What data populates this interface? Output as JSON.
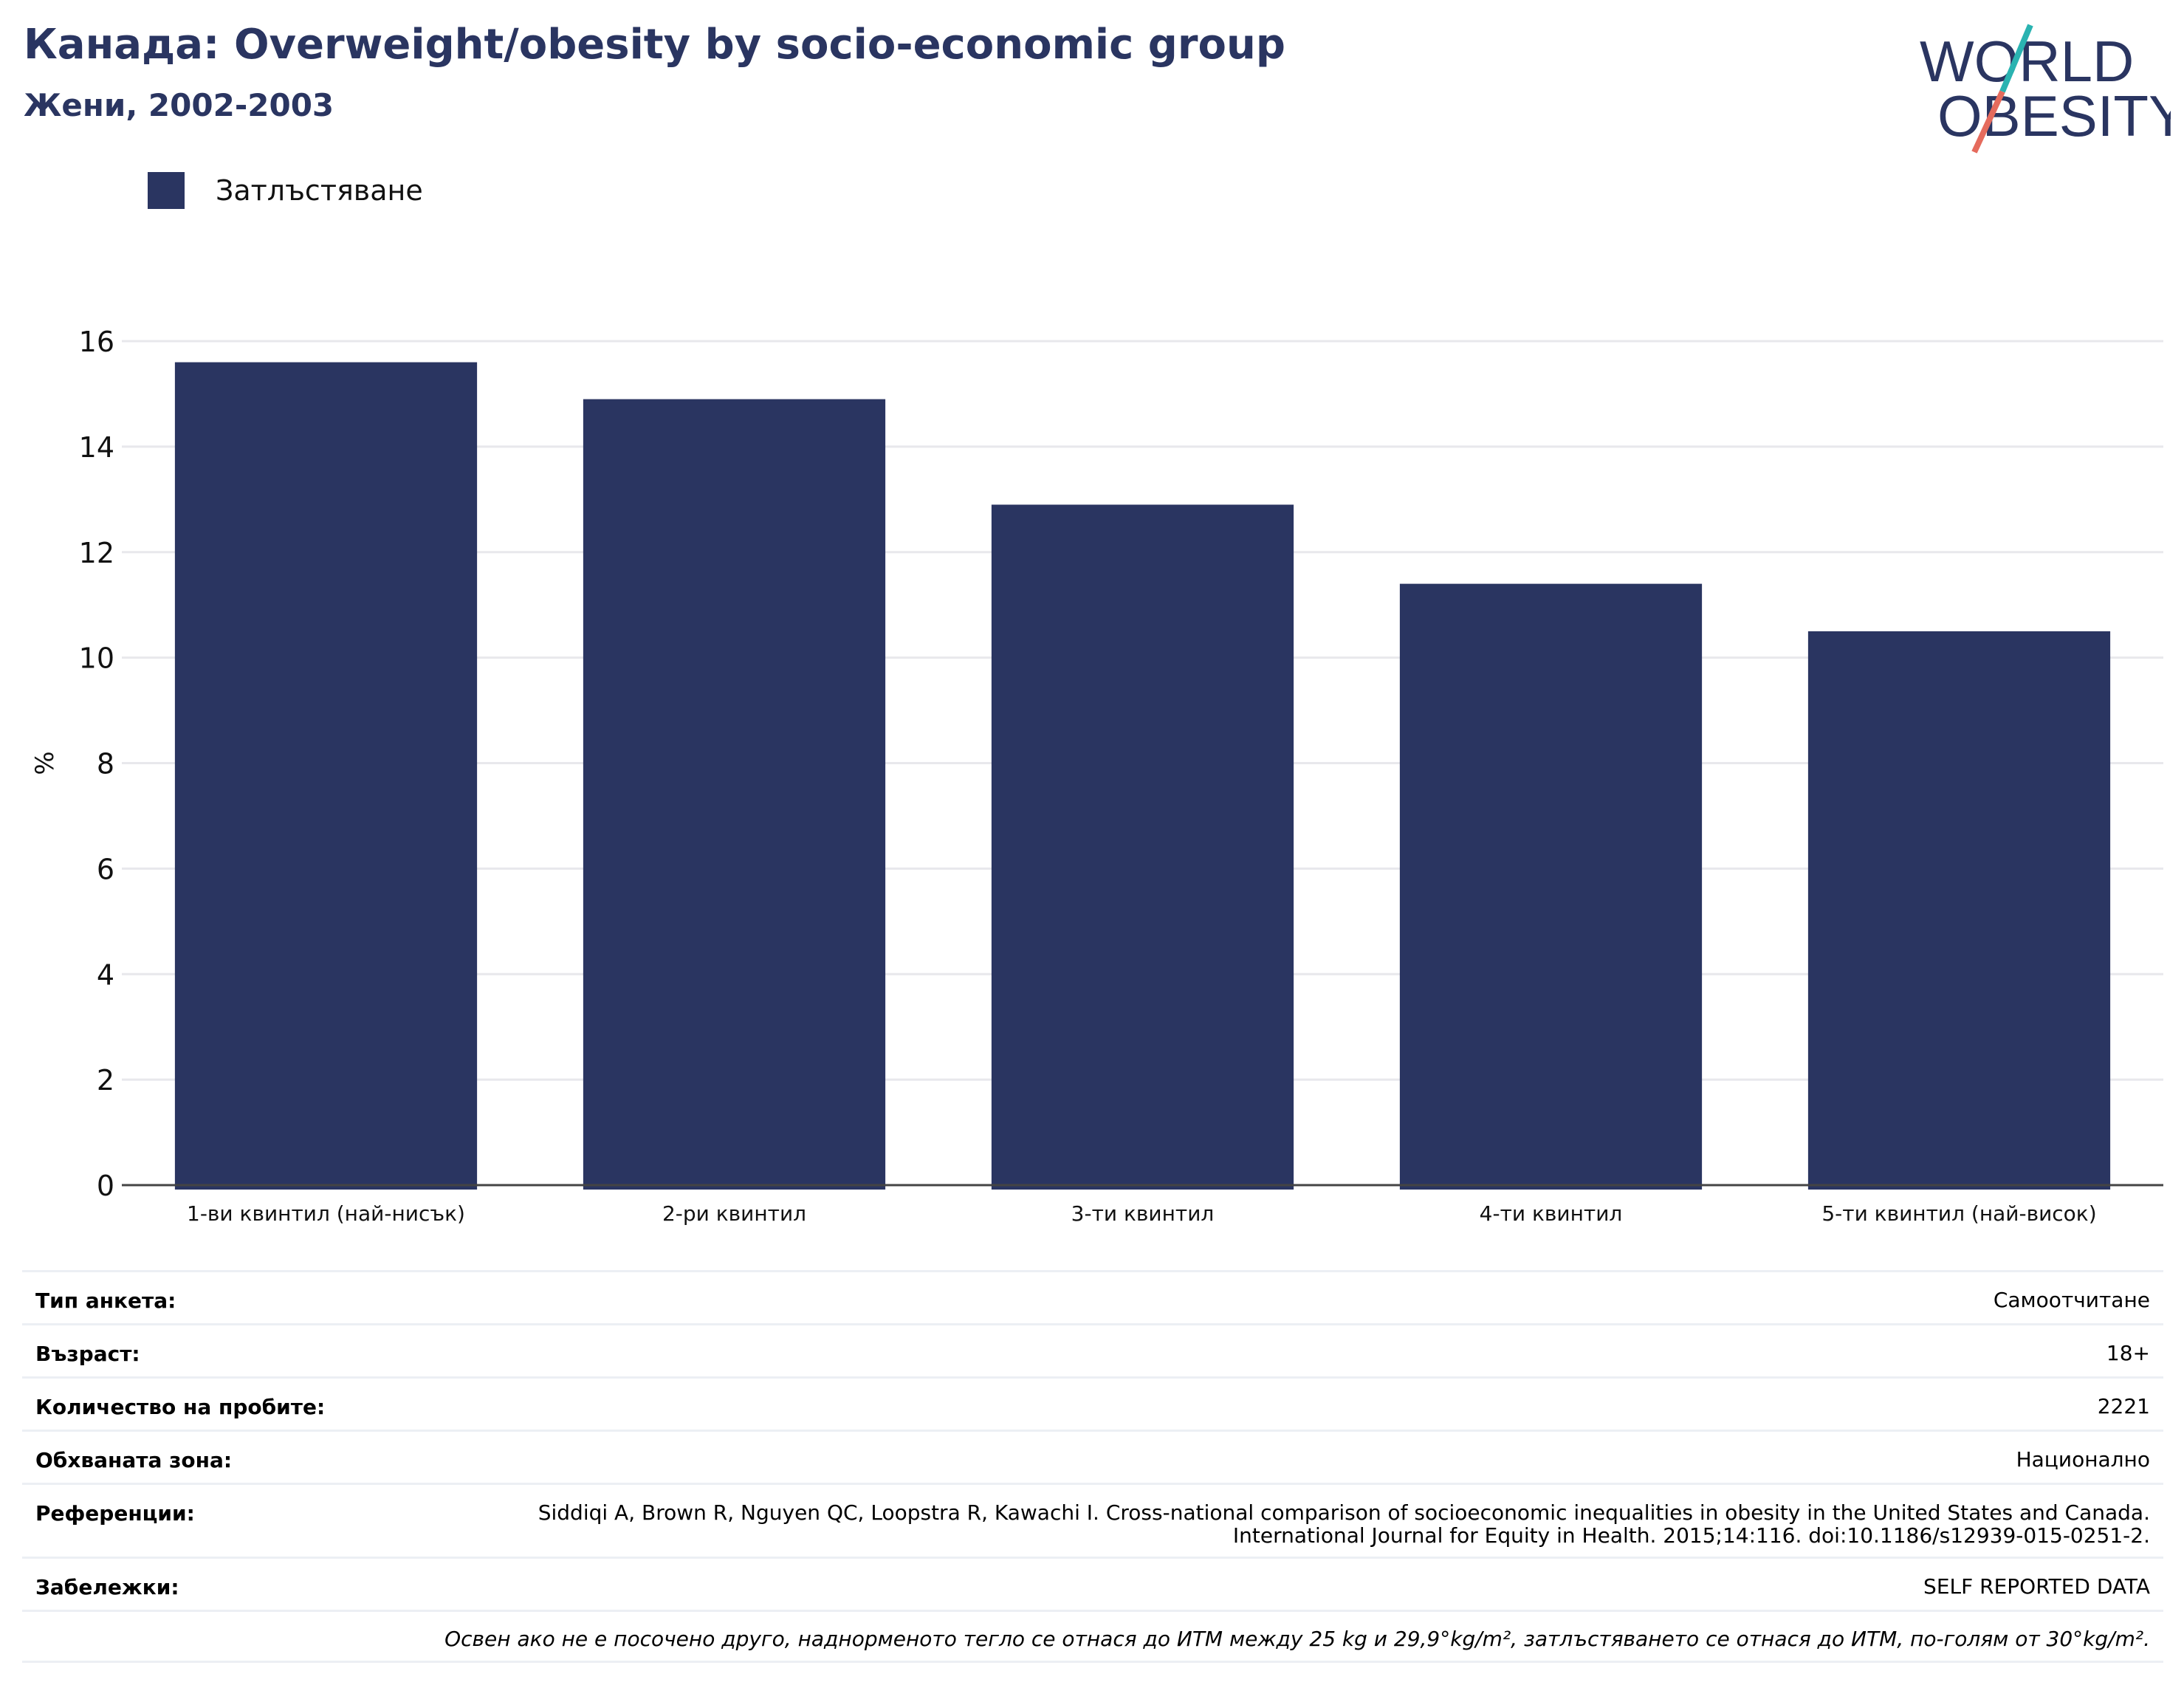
{
  "header": {
    "title": "Канада: Overweight/obesity by socio-economic group",
    "subtitle": "Жени, 2002-2003"
  },
  "logo": {
    "line1": "WORLD",
    "line2": "OBESITY",
    "colors": {
      "text": "#2a3561",
      "slash_teal": "#2ab3b1",
      "slash_coral": "#e56b5d"
    }
  },
  "legend": {
    "label": "Затлъстяване",
    "color": "#2a3561"
  },
  "chart_data": {
    "type": "bar",
    "categories": [
      "1-ви квинтил (най-нисък)",
      "2-ри квинтил",
      "3-ти квинтил",
      "4-ти квинтил",
      "5-ти квинтил (най-висок)"
    ],
    "series": [
      {
        "name": "Затлъстяване",
        "values": [
          15.6,
          14.9,
          12.9,
          11.4,
          10.5
        ],
        "color": "#2a3561"
      }
    ],
    "ylabel": "%",
    "ylim": [
      0,
      16
    ],
    "yticks": [
      0,
      2,
      4,
      6,
      8,
      10,
      12,
      14,
      16
    ],
    "grid": true
  },
  "info": {
    "survey_type": {
      "label": "Тип анкета:",
      "value": "Самоотчитане"
    },
    "age": {
      "label": "Възраст:",
      "value": "18+"
    },
    "sample_size": {
      "label": "Количество на пробите:",
      "value": "2221"
    },
    "coverage": {
      "label": "Обхваната зона:",
      "value": "Национално"
    },
    "references": {
      "label": "Референции:",
      "value": "Siddiqi A, Brown R, Nguyen QC, Loopstra R, Kawachi I. Cross-national comparison of socioeconomic inequalities in obesity in the United States and Canada. International Journal for Equity in Health. 2015;14:116. doi:10.1186/s12939-015-0251-2."
    },
    "notes": {
      "label": "Забележки:",
      "value": "SELF REPORTED DATA"
    },
    "footnote": "Освен ако не е посочено друго, наднорменото тегло се отнася до ИТМ между 25 kg и 29,9°kg/m², затлъстяването се отнася до ИТМ, по-голям от 30°kg/m²."
  }
}
